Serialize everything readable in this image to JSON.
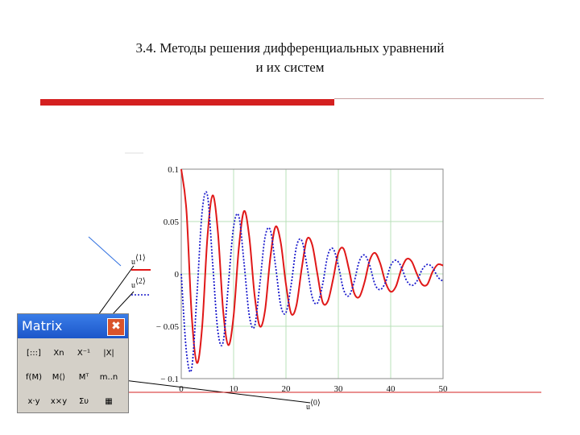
{
  "slide": {
    "title_line1": "3.4. Методы решения дифференциальных уравнений",
    "title_line2": "и их систем"
  },
  "colors": {
    "accent_red": "#d42020",
    "series1": "#e01818",
    "series2": "#1a1acc",
    "grid": "#b8e0b8"
  },
  "chart_data": {
    "type": "line",
    "xlim": [
      0,
      50
    ],
    "ylim": [
      -0.1,
      0.1
    ],
    "xticks": [
      "0",
      "10",
      "20",
      "30",
      "40",
      "50"
    ],
    "yticks": [
      "0.1",
      "0.05",
      "0",
      "− 0.05",
      "− 0.1"
    ],
    "xlabel": {
      "base": "u",
      "sup": "⟨0⟩"
    },
    "grid": true,
    "series": [
      {
        "label_base": "u",
        "label_sup": "⟨1⟩",
        "style": "solid",
        "color": "#e01818",
        "x": [
          0,
          1,
          2,
          3,
          4,
          5,
          6,
          7,
          8,
          9,
          10,
          11,
          12,
          13,
          14,
          15,
          16,
          17,
          18,
          19,
          20,
          21,
          22,
          23,
          24,
          25,
          26,
          27,
          28,
          29,
          30,
          31,
          32,
          33,
          34,
          35,
          36,
          37,
          38,
          39,
          40,
          41,
          42,
          43,
          44,
          45,
          46,
          47,
          48,
          49,
          50
        ],
        "y": [
          0.1,
          0.06,
          -0.04,
          -0.085,
          -0.05,
          0.035,
          0.075,
          0.04,
          -0.035,
          -0.068,
          -0.04,
          0.025,
          0.06,
          0.035,
          -0.02,
          -0.05,
          -0.035,
          0.015,
          0.045,
          0.03,
          -0.01,
          -0.038,
          -0.03,
          0.005,
          0.033,
          0.028,
          0,
          -0.027,
          -0.026,
          -0.005,
          0.02,
          0.024,
          0.005,
          -0.018,
          -0.022,
          -0.008,
          0.013,
          0.02,
          0.01,
          -0.008,
          -0.017,
          -0.012,
          0.004,
          0.014,
          0.012,
          0,
          -0.01,
          -0.01,
          0.002,
          0.009,
          0.008
        ]
      },
      {
        "label_base": "u",
        "label_sup": "⟨2⟩",
        "style": "dotted",
        "color": "#1a1acc",
        "x": [
          0,
          1,
          2,
          3,
          4,
          5,
          6,
          7,
          8,
          9,
          10,
          11,
          12,
          13,
          14,
          15,
          16,
          17,
          18,
          19,
          20,
          21,
          22,
          23,
          24,
          25,
          26,
          27,
          28,
          29,
          30,
          31,
          32,
          33,
          34,
          35,
          36,
          37,
          38,
          39,
          40,
          41,
          42,
          43,
          44,
          45,
          46,
          47,
          48,
          49,
          50
        ],
        "y": [
          0,
          -0.075,
          -0.09,
          -0.02,
          0.06,
          0.075,
          0.01,
          -0.055,
          -0.065,
          -0.01,
          0.045,
          0.055,
          0.01,
          -0.04,
          -0.05,
          -0.01,
          0.035,
          0.042,
          0.008,
          -0.03,
          -0.037,
          -0.01,
          0.026,
          0.032,
          0.008,
          -0.022,
          -0.028,
          -0.01,
          0.018,
          0.024,
          0.008,
          -0.015,
          -0.021,
          -0.008,
          0.012,
          0.018,
          0.008,
          -0.01,
          -0.015,
          -0.008,
          0.008,
          0.013,
          0.007,
          -0.006,
          -0.011,
          -0.007,
          0.004,
          0.009,
          0.006,
          -0.003,
          -0.007
        ]
      }
    ]
  },
  "matrix_toolbar": {
    "title": "Matrix",
    "close_symbol": "✖",
    "buttons": [
      "[:::]",
      "Xn",
      "X⁻¹",
      "|X|",
      "f(M)",
      "M⟨⟩",
      "Mᵀ",
      "m..n",
      "x·y",
      "x×y",
      "Συ",
      "▦"
    ]
  }
}
